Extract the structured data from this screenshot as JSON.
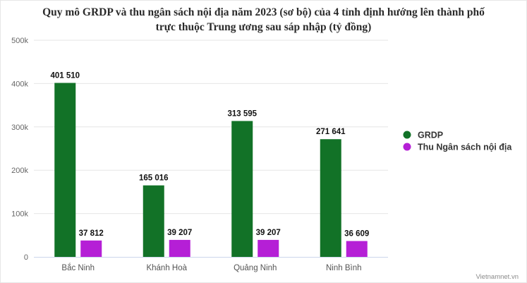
{
  "chart_data": {
    "type": "bar",
    "title_line1": "Quy mô GRDP và thu ngân sách nội địa năm 2023 (sơ bộ) của 4 tỉnh định hướng lên thành phố",
    "title_line2": "trực thuộc Trung ương sau sáp nhập (tỷ đồng)",
    "categories": [
      "Bắc Ninh",
      "Khánh Hoà",
      "Quảng Ninh",
      "Ninh Bình"
    ],
    "series": [
      {
        "name": "GRDP",
        "color": "#127227",
        "values": [
          401510,
          165016,
          313595,
          271641
        ],
        "labels": [
          "401 510",
          "165 016",
          "313 595",
          "271 641"
        ]
      },
      {
        "name": "Thu Ngân sách nội địa",
        "color": "#b51fd6",
        "values": [
          37812,
          39207,
          39207,
          36609
        ],
        "labels": [
          "37 812",
          "39 207",
          "39 207",
          "36 609"
        ]
      }
    ],
    "yticks": [
      0,
      100000,
      200000,
      300000,
      400000,
      500000
    ],
    "ytick_labels": [
      "0",
      "100k",
      "200k",
      "300k",
      "400k",
      "500k"
    ],
    "ylim": [
      0,
      500000
    ],
    "grid": true,
    "legend_position": "right"
  },
  "credit": "Vietnamnet.vn"
}
